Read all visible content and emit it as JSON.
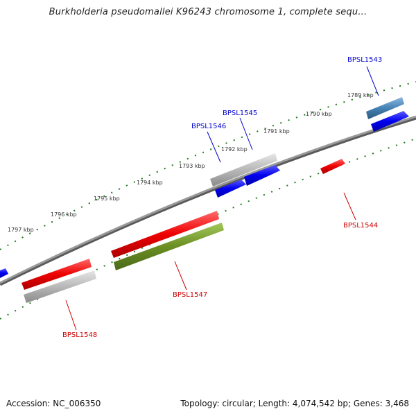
{
  "title": "Burkholderia pseudomallei K96243 chromosome 1, complete sequ...",
  "footer": {
    "accession": "Accession: NC_006350",
    "summary": "Topology: circular; Length: 4,074,542 bp; Genes: 3,468"
  },
  "scale": {
    "ticks": [
      "1797 kbp",
      "1796 kbp",
      "1795 kbp",
      "1794 kbp",
      "1793 kbp",
      "1792 kbp",
      "1791 kbp",
      "1790 kbp",
      "1789 kbp"
    ]
  },
  "genes": [
    {
      "label": "BPSL1543",
      "color": "#0000cc"
    },
    {
      "label": "BPSL1544",
      "color": "#cc0000"
    },
    {
      "label": "BPSL1545",
      "color": "#0000cc"
    },
    {
      "label": "BPSL1546",
      "color": "#0000cc"
    },
    {
      "label": "BPSL1547",
      "color": "#cc0000"
    },
    {
      "label": "BPSL1548",
      "color": "#cc0000"
    }
  ],
  "colors": {
    "forward_cds": "#0000ee",
    "reverse_cds": "#ee0000",
    "gene": "#b0b0b0",
    "ribbon_olive": "#6b8e23",
    "ribbon_steel": "#4682b4",
    "backbone": "#808080",
    "tick": "#1e7a1e"
  }
}
